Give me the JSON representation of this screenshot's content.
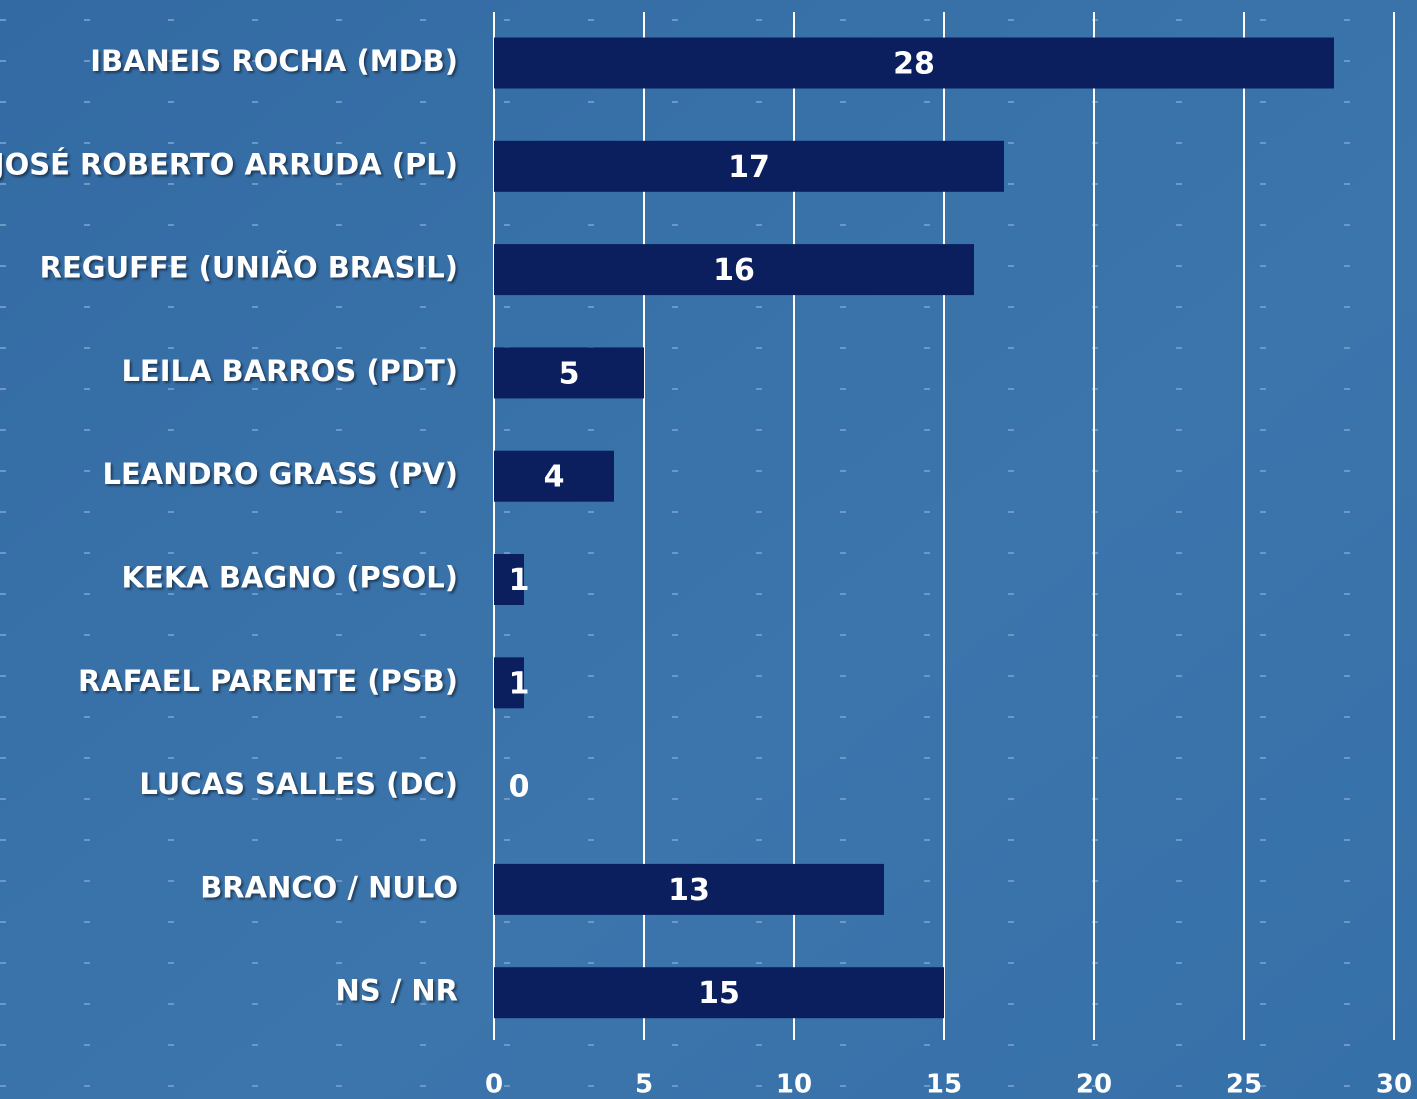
{
  "chart_data": {
    "type": "bar",
    "orientation": "horizontal",
    "categories": [
      "IBANEIS ROCHA (MDB)",
      "JOSÉ ROBERTO ARRUDA (PL)",
      "REGUFFE (UNIÃO BRASIL)",
      "LEILA BARROS (PDT)",
      "LEANDRO GRASS (PV)",
      "KEKA BAGNO (PSOL)",
      "RAFAEL PARENTE (PSB)",
      "LUCAS SALLES (DC)",
      "BRANCO / NULO",
      "NS / NR"
    ],
    "values": [
      28,
      17,
      16,
      5,
      4,
      1,
      1,
      0,
      13,
      15
    ],
    "color": "#0b1f5e",
    "xlim": [
      0,
      30
    ],
    "xticks": [
      0,
      5,
      10,
      15,
      20,
      25,
      30
    ],
    "grid": true
  }
}
